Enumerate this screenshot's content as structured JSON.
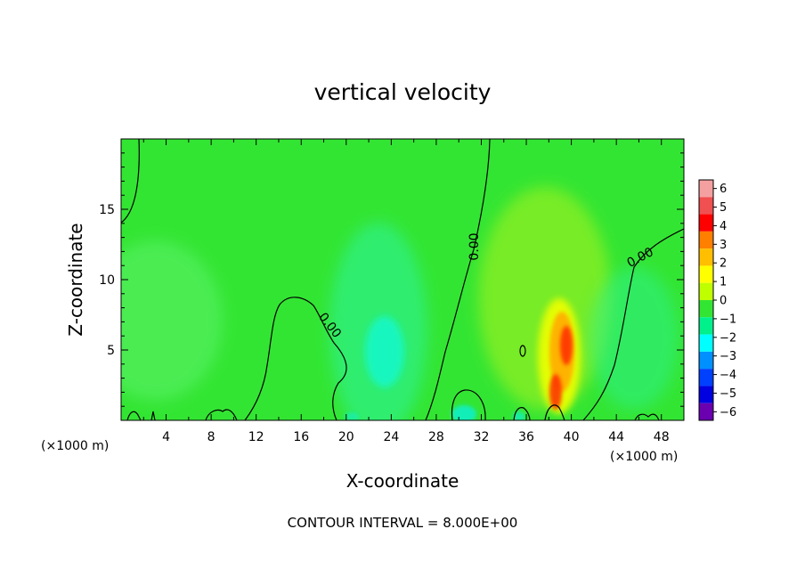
{
  "chart_data": {
    "type": "heatmap",
    "title": "vertical velocity",
    "xlabel": "X-coordinate",
    "ylabel": "Z-coordinate",
    "x_unit_left": "(×1000 m)",
    "x_unit_right": "(×1000 m)",
    "xlim": [
      0,
      50
    ],
    "ylim": [
      0,
      20
    ],
    "x_ticks": [
      4,
      8,
      12,
      16,
      20,
      24,
      28,
      32,
      36,
      40,
      44,
      48
    ],
    "y_ticks": [
      5,
      10,
      15
    ],
    "colorbar": {
      "levels": [
        6,
        5,
        4,
        3,
        2,
        1,
        0,
        -1,
        -2,
        -3,
        -4,
        -5,
        -6
      ],
      "labels": [
        "6",
        "5",
        "4",
        "3",
        "2",
        "1",
        "0",
        "−1",
        "−2",
        "−3",
        "−4",
        "−5",
        "−6"
      ],
      "colors": [
        "#f5a0a0",
        "#f05050",
        "#ff0000",
        "#ff7f00",
        "#ffbf00",
        "#ffff00",
        "#bfff00",
        "#33e533",
        "#00f08c",
        "#00ffff",
        "#0090ff",
        "#0040ff",
        "#0000e0",
        "#6a00b0"
      ]
    },
    "background_color": "#33e533",
    "features": [
      {
        "x": 40,
        "z": 5,
        "value": 4,
        "note": "updraft core"
      },
      {
        "x": 39,
        "z": 1.5,
        "value": 4
      },
      {
        "x": 23.5,
        "z": 5,
        "value": -2,
        "note": "downdraft"
      },
      {
        "x": 30,
        "z": 1,
        "value": -2
      }
    ],
    "contour_label": "0.00",
    "footer": "CONTOUR INTERVAL = 8.000E+00"
  }
}
